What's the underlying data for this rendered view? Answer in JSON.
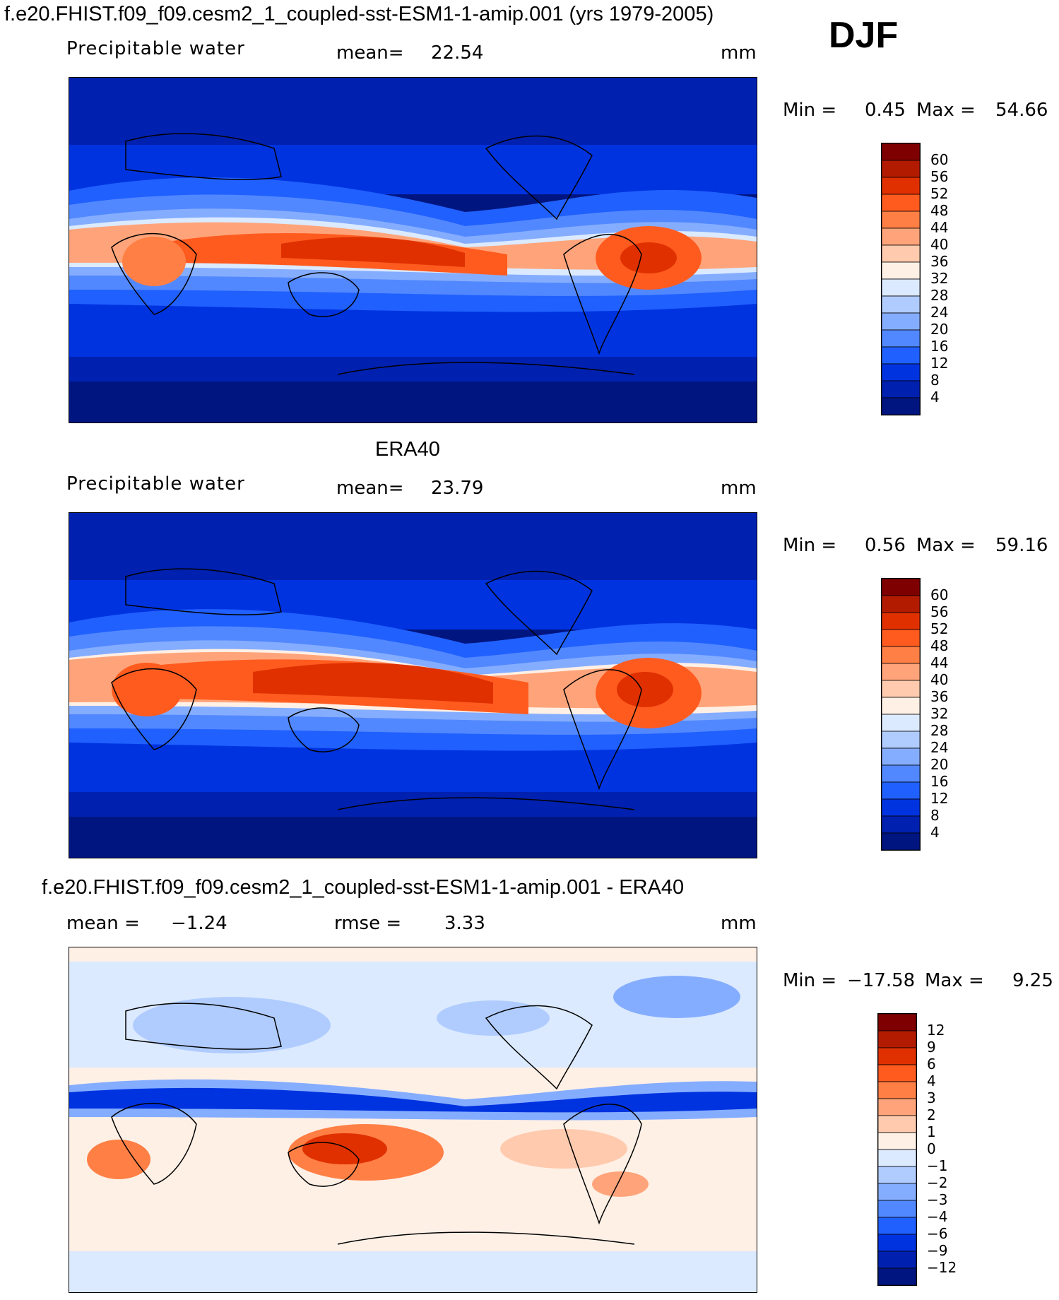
{
  "header": {
    "case_title": "f.e20.FHIST.f09_f09.cesm2_1_coupled-sst-ESM1-1-amip.001 (yrs 1979-2005)",
    "season": "DJF"
  },
  "panel1": {
    "variable": "Precipitable  water",
    "mean_label": "mean=",
    "mean_value": "22.54",
    "units": "mm",
    "min_label": "Min  =",
    "min_value": "0.45",
    "max_label": "Max  =",
    "max_value": "54.66",
    "colorbar_ticks": [
      "60",
      "56",
      "52",
      "48",
      "44",
      "40",
      "36",
      "32",
      "28",
      "24",
      "20",
      "16",
      "12",
      "8",
      "4"
    ]
  },
  "panel2": {
    "title": "ERA40",
    "variable": "Precipitable  water",
    "mean_label": "mean=",
    "mean_value": "23.79",
    "units": "mm",
    "min_label": "Min  =",
    "min_value": "0.56",
    "max_label": "Max  =",
    "max_value": "59.16",
    "colorbar_ticks": [
      "60",
      "56",
      "52",
      "48",
      "44",
      "40",
      "36",
      "32",
      "28",
      "24",
      "20",
      "16",
      "12",
      "8",
      "4"
    ]
  },
  "panel3": {
    "title": "f.e20.FHIST.f09_f09.cesm2_1_coupled-sst-ESM1-1-amip.001 - ERA40",
    "mean_label": "mean  =",
    "mean_value": "−1.24",
    "rmse_label": "rmse  =",
    "rmse_value": "3.33",
    "units": "mm",
    "min_label": "Min  =",
    "min_value": "−17.58",
    "max_label": "Max  =",
    "max_value": "9.25",
    "colorbar_ticks": [
      "12",
      "9",
      "6",
      "4",
      "3",
      "2",
      "1",
      "0",
      "−1",
      "−2",
      "−3",
      "−4",
      "−6",
      "−9",
      "−12"
    ]
  },
  "colors": {
    "abs_scale": [
      "#7f0000",
      "#b31b00",
      "#e03000",
      "#ff5b1f",
      "#ff7f45",
      "#ffa47a",
      "#ffcaad",
      "#fff0e6",
      "#dbeaff",
      "#b0ccff",
      "#85adff",
      "#5288ff",
      "#2060ff",
      "#0033e0",
      "#0020b0",
      "#001580"
    ],
    "diff_scale": [
      "#7f0000",
      "#b31b00",
      "#e03000",
      "#ff5b1f",
      "#ff7f45",
      "#ffa47a",
      "#ffcaad",
      "#fff0e6",
      "#dbeaff",
      "#b0ccff",
      "#85adff",
      "#5288ff",
      "#2060ff",
      "#0033e0",
      "#0020b0",
      "#001580"
    ]
  }
}
